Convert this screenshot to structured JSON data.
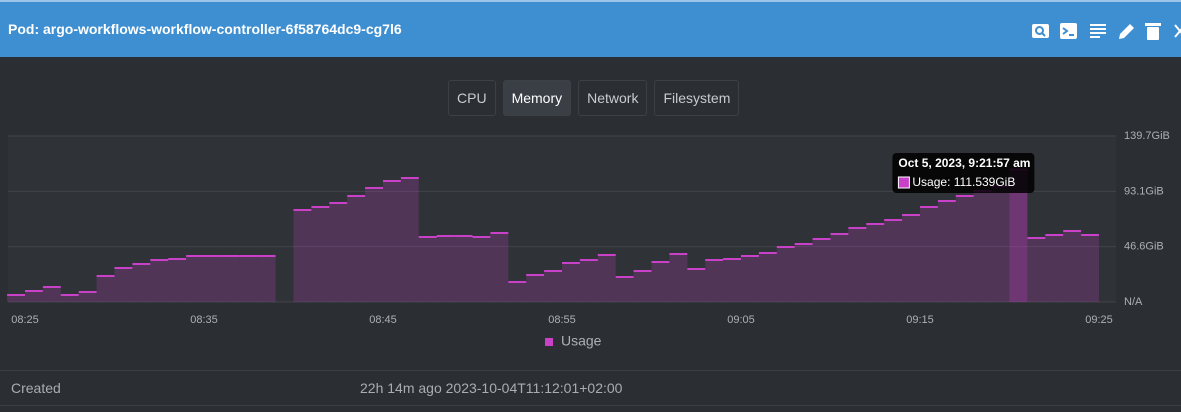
{
  "header": {
    "title": "Pod: argo-workflows-workflow-controller-6f58764dc9-cg7l6"
  },
  "tabs": [
    "CPU",
    "Memory",
    "Network",
    "Filesystem"
  ],
  "chart_data": {
    "type": "step-area",
    "x": [
      "08:25",
      "08:26",
      "08:27",
      "08:28",
      "08:29",
      "08:30",
      "08:31",
      "08:32",
      "08:33",
      "08:34",
      "08:35",
      "08:36",
      "08:37",
      "08:38",
      "08:39",
      "08:40",
      "08:41",
      "08:42",
      "08:43",
      "08:44",
      "08:45",
      "08:46",
      "08:47",
      "08:48",
      "08:49",
      "08:50",
      "08:51",
      "08:52",
      "08:53",
      "08:54",
      "08:55",
      "08:56",
      "08:57",
      "08:58",
      "08:59",
      "09:00",
      "09:01",
      "09:02",
      "09:03",
      "09:04",
      "09:05",
      "09:06",
      "09:07",
      "09:08",
      "09:09",
      "09:10",
      "09:11",
      "09:12",
      "09:13",
      "09:14",
      "09:15",
      "09:16",
      "09:17",
      "09:18",
      "09:19",
      "09:20",
      "09:21",
      "09:22",
      "09:23",
      "09:24",
      "09:25"
    ],
    "series": [
      {
        "name": "Usage",
        "color": "#c940c9",
        "values": [
          5.9,
          9.3,
          12.6,
          5.9,
          8.4,
          21.9,
          28.6,
          32.0,
          35.3,
          36.2,
          38.7,
          38.7,
          38.7,
          38.7,
          38.7,
          null,
          77.4,
          80.0,
          83.3,
          89.2,
          95.9,
          101.8,
          104.4,
          54.7,
          55.5,
          55.5,
          54.7,
          58.1,
          16.8,
          22.7,
          26.1,
          32.8,
          35.3,
          39.6,
          21.0,
          26.1,
          33.7,
          40.4,
          27.8,
          35.3,
          36.2,
          38.7,
          41.2,
          46.3,
          48.8,
          53.0,
          57.2,
          62.3,
          65.6,
          69.0,
          73.2,
          80.0,
          85.0,
          89.2,
          93.4,
          97.6,
          111.539,
          53.9,
          56.4,
          59.8,
          56.4
        ]
      }
    ],
    "ylim": [
      0,
      139.7
    ],
    "yticks": [
      {
        "value": 0,
        "label": "N/A"
      },
      {
        "value": 46.6,
        "label": "46.6GiB"
      },
      {
        "value": 93.1,
        "label": "93.1GiB"
      },
      {
        "value": 139.7,
        "label": "139.7GiB"
      }
    ],
    "xticks": [
      "08:25",
      "08:35",
      "08:45",
      "08:55",
      "09:05",
      "09:15",
      "09:25"
    ],
    "grid": true,
    "tooltip": {
      "title": "Oct 5, 2023, 9:21:57 am",
      "label": "Usage: 111.539GiB"
    }
  },
  "details": {
    "rows": [
      [
        "Created",
        "22h 14m ago 2023-10-04T11:12:01+02:00"
      ]
    ]
  }
}
